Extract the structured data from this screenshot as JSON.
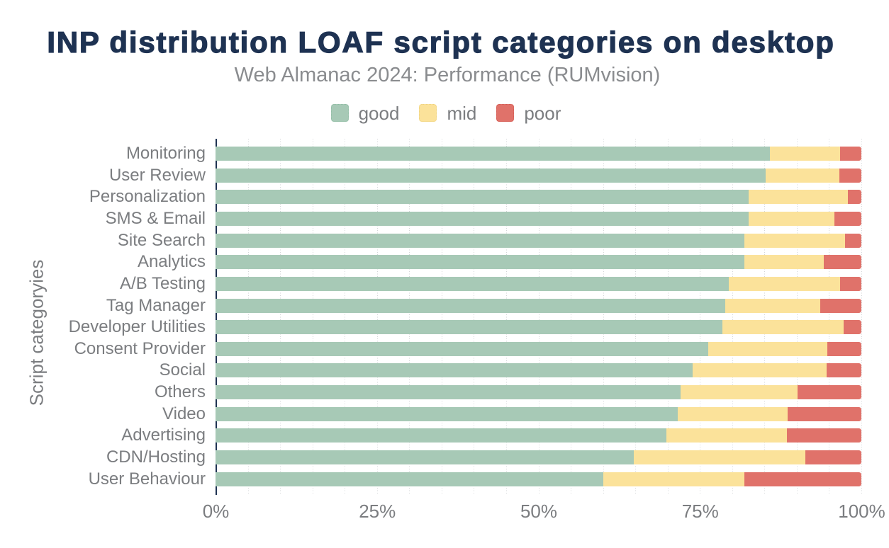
{
  "title": "INP distribution LOAF script categories on desktop",
  "subtitle": "Web Almanac 2024: Performance (RUMvision)",
  "colors": {
    "title_navy": "#1e3252",
    "subtitle_gray": "#8a8c8f",
    "axis_text_gray": "#7b7d80",
    "axis_line_navy": "#1e3252",
    "gridline_gray": "#d3d5d7",
    "good_green": "#a7c9b6",
    "good_green_border": "#8fbca3",
    "mid_yellow": "#fbe29a",
    "mid_yellow_border": "#eed17c",
    "poor_red": "#e0726a",
    "poor_red_border": "#d25a52",
    "background": "#ffffff"
  },
  "legend": {
    "items": [
      {
        "label": "good",
        "color": "#a7c9b6",
        "border": "#8fbca3"
      },
      {
        "label": "mid",
        "color": "#fbe29a",
        "border": "#eed17c"
      },
      {
        "label": "poor",
        "color": "#e0726a",
        "border": "#d25a52"
      }
    ]
  },
  "chart_data": {
    "type": "bar",
    "orientation": "horizontal",
    "stacked": true,
    "units": "percent",
    "title": "INP distribution LOAF script categories on desktop",
    "subtitle": "Web Almanac 2024: Performance (RUMvision)",
    "xlabel": "",
    "ylabel": "Script categoryies",
    "xlim": [
      0,
      100
    ],
    "x_ticks": [
      {
        "label": "0%",
        "value": 0
      },
      {
        "label": "25%",
        "value": 25
      },
      {
        "label": "50%",
        "value": 50
      },
      {
        "label": "75%",
        "value": 75
      },
      {
        "label": "100%",
        "value": 100
      }
    ],
    "grid": "vertical dotted lines every 5%",
    "legend_position": "top",
    "categories": [
      "Monitoring",
      "User Review",
      "Personalization",
      "SMS & Email",
      "Site Search",
      "Analytics",
      "A/B Testing",
      "Tag Manager",
      "Developer Utilities",
      "Consent Provider",
      "Social",
      "Others",
      "Video",
      "Advertising",
      "CDN/Hosting",
      "User Behaviour"
    ],
    "series": [
      {
        "name": "good",
        "color": "#a7c9b6",
        "values": [
          85.8,
          85.1,
          82.5,
          82.5,
          81.8,
          81.8,
          79.4,
          78.9,
          78.5,
          76.3,
          73.9,
          72.0,
          71.5,
          69.8,
          64.7,
          60.0
        ]
      },
      {
        "name": "mid",
        "color": "#fbe29a",
        "values": [
          10.9,
          11.4,
          15.4,
          13.3,
          15.6,
          12.3,
          17.3,
          14.7,
          18.7,
          18.4,
          20.7,
          18.1,
          17.0,
          18.6,
          26.6,
          21.9
        ]
      },
      {
        "name": "poor",
        "color": "#e0726a",
        "values": [
          3.3,
          3.5,
          2.1,
          4.2,
          2.6,
          5.9,
          3.3,
          6.4,
          2.8,
          5.3,
          5.4,
          9.9,
          11.5,
          11.6,
          8.7,
          18.1
        ]
      }
    ]
  }
}
